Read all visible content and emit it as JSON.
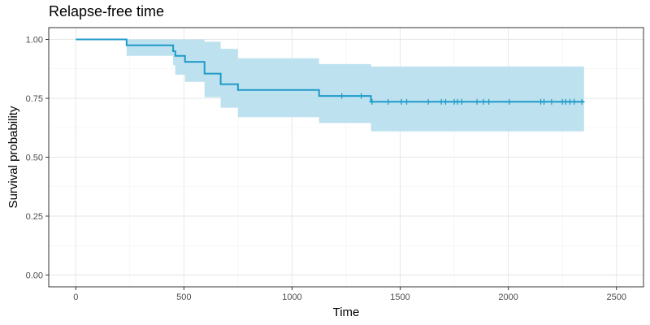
{
  "chart_data": {
    "type": "line",
    "title": "Relapse-free time",
    "xlabel": "Time",
    "ylabel": "Survival probability",
    "xlim": [
      -125,
      2625
    ],
    "ylim": [
      -0.05,
      1.05
    ],
    "xticks": [
      0,
      500,
      1000,
      1500,
      2000,
      2500
    ],
    "yticks": [
      0,
      0.25,
      0.5,
      0.75,
      1.0
    ],
    "xtick_labels": [
      "0",
      "500",
      "1000",
      "1500",
      "2000",
      "2500"
    ],
    "ytick_labels": [
      "0.00",
      "0.25",
      "0.50",
      "0.75",
      "1.00"
    ],
    "grid": true,
    "line_color": "#1f9ac9",
    "ci_color": "#b9dfee",
    "series": [
      {
        "steps": [
          {
            "x": 0,
            "y": 1.0
          },
          {
            "x": 235,
            "y": 0.975
          },
          {
            "x": 450,
            "y": 0.95
          },
          {
            "x": 460,
            "y": 0.93
          },
          {
            "x": 505,
            "y": 0.905
          },
          {
            "x": 595,
            "y": 0.855
          },
          {
            "x": 670,
            "y": 0.81
          },
          {
            "x": 750,
            "y": 0.785
          },
          {
            "x": 1125,
            "y": 0.76
          },
          {
            "x": 1365,
            "y": 0.735
          }
        ],
        "end_x": 2350,
        "ci": [
          {
            "x": 0,
            "lower": 1.0,
            "upper": 1.0
          },
          {
            "x": 235,
            "lower": 0.93,
            "upper": 1.0
          },
          {
            "x": 450,
            "lower": 0.89,
            "upper": 1.0
          },
          {
            "x": 460,
            "lower": 0.85,
            "upper": 1.0
          },
          {
            "x": 505,
            "lower": 0.82,
            "upper": 1.0
          },
          {
            "x": 595,
            "lower": 0.755,
            "upper": 0.99
          },
          {
            "x": 670,
            "lower": 0.71,
            "upper": 0.96
          },
          {
            "x": 750,
            "lower": 0.67,
            "upper": 0.92
          },
          {
            "x": 1125,
            "lower": 0.645,
            "upper": 0.895
          },
          {
            "x": 1365,
            "lower": 0.61,
            "upper": 0.885
          }
        ],
        "censored_x": [
          1230,
          1320,
          1370,
          1445,
          1505,
          1530,
          1630,
          1690,
          1710,
          1750,
          1765,
          1785,
          1855,
          1885,
          1910,
          2005,
          2150,
          2165,
          2200,
          2250,
          2265,
          2285,
          2305,
          2340
        ]
      }
    ]
  }
}
